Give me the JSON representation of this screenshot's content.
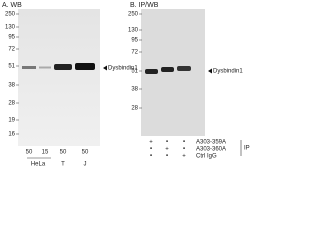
{
  "panel_a": {
    "title": "A. WB",
    "markers": [
      "250",
      "130",
      "95",
      "72",
      "51",
      "38",
      "28",
      "19",
      "16"
    ],
    "target": "Dysbindin1",
    "lane_amounts": [
      "50",
      "15",
      "50",
      "50"
    ],
    "cell_lines": [
      "HeLa",
      "T",
      "J"
    ]
  },
  "panel_b": {
    "title": "B. IP/WB",
    "markers": [
      "250",
      "130",
      "95",
      "72",
      "51",
      "38",
      "28"
    ],
    "target": "Dysbindin1",
    "rows": [
      {
        "label": "A303-359A",
        "marks": [
          "+",
          "•",
          "•"
        ]
      },
      {
        "label": "A303-360A",
        "marks": [
          "•",
          "+",
          "•"
        ]
      },
      {
        "label": "Ctrl IgG",
        "marks": [
          "•",
          "•",
          "+"
        ]
      }
    ],
    "group_label": "IP"
  }
}
